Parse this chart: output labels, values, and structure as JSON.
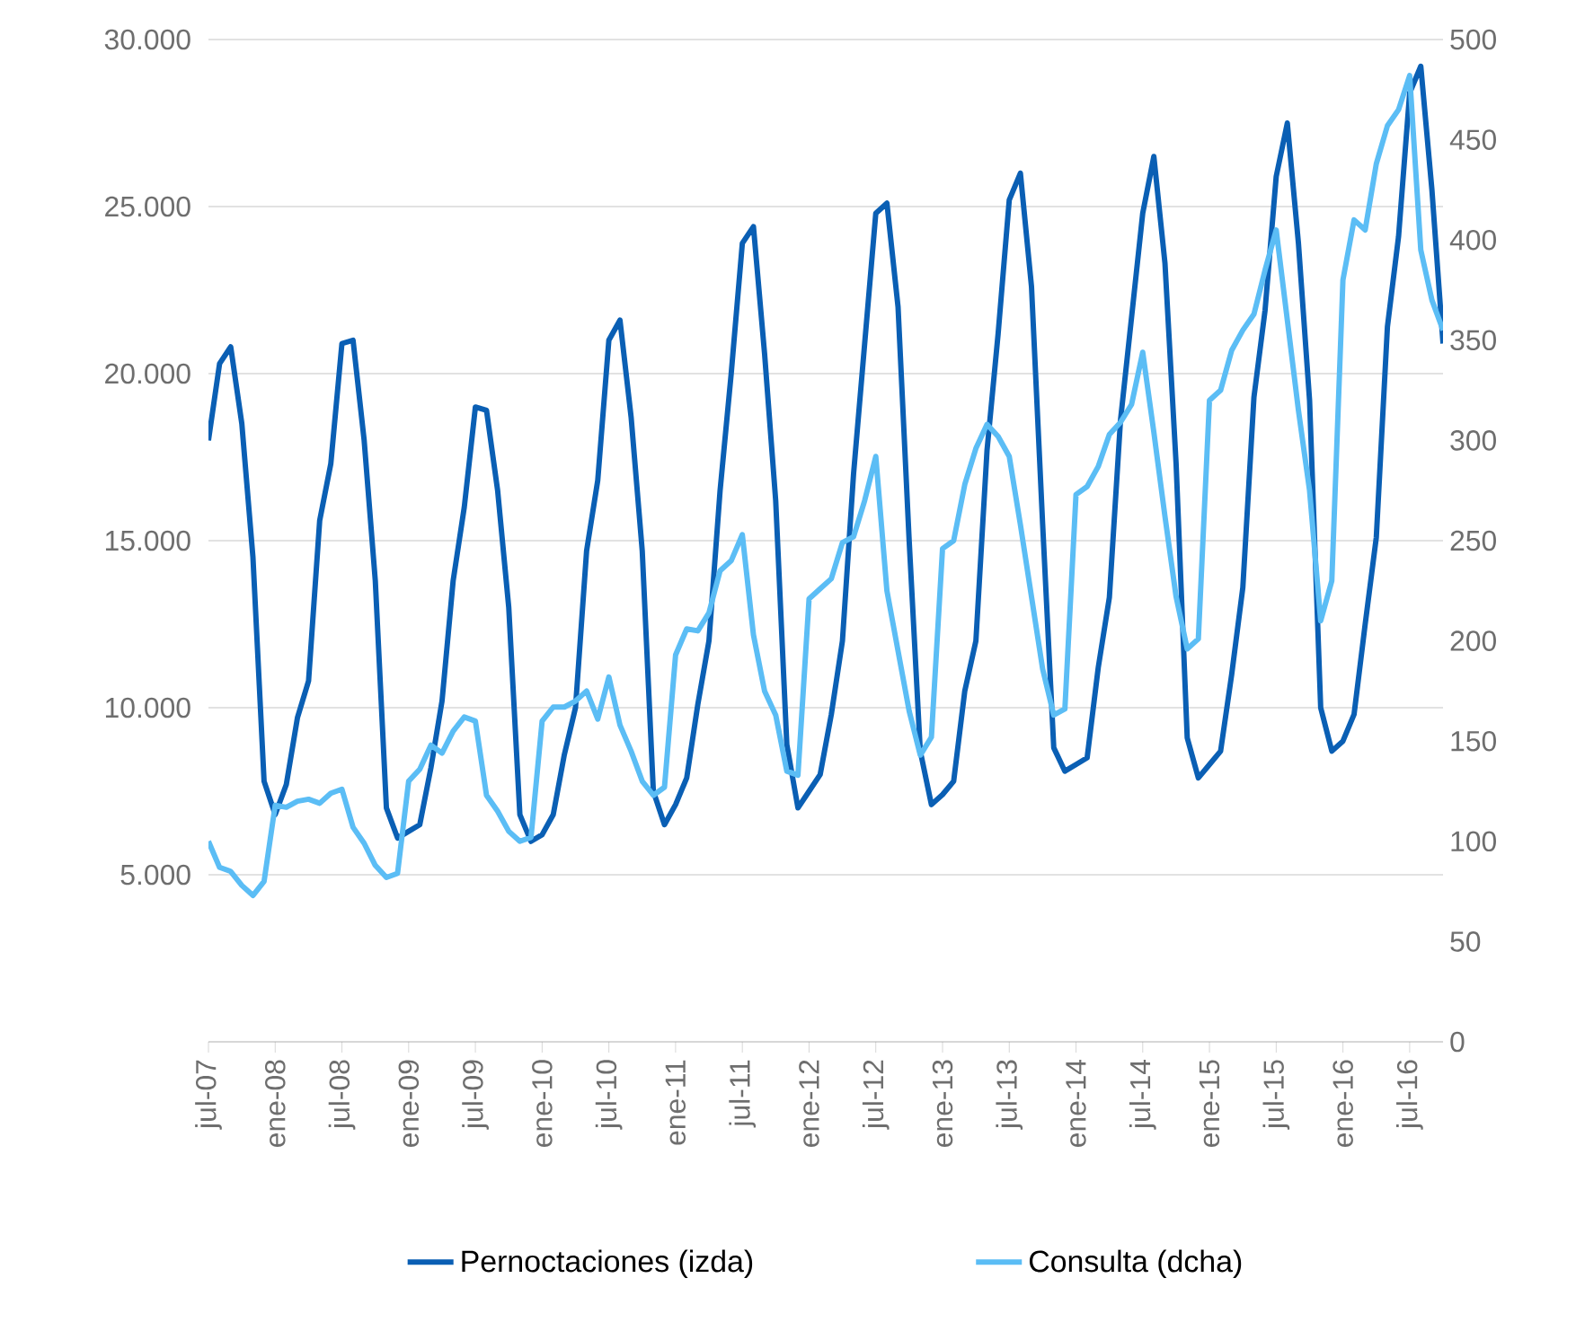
{
  "chart_data": {
    "type": "line",
    "x": [
      "2007-07",
      "2007-08",
      "2007-09",
      "2007-10",
      "2007-11",
      "2007-12",
      "2008-01",
      "2008-02",
      "2008-03",
      "2008-04",
      "2008-05",
      "2008-06",
      "2008-07",
      "2008-08",
      "2008-09",
      "2008-10",
      "2008-11",
      "2008-12",
      "2009-01",
      "2009-02",
      "2009-03",
      "2009-04",
      "2009-05",
      "2009-06",
      "2009-07",
      "2009-08",
      "2009-09",
      "2009-10",
      "2009-11",
      "2009-12",
      "2010-01",
      "2010-02",
      "2010-03",
      "2010-04",
      "2010-05",
      "2010-06",
      "2010-07",
      "2010-08",
      "2010-09",
      "2010-10",
      "2010-11",
      "2010-12",
      "2011-01",
      "2011-02",
      "2011-03",
      "2011-04",
      "2011-05",
      "2011-06",
      "2011-07",
      "2011-08",
      "2011-09",
      "2011-10",
      "2011-11",
      "2011-12",
      "2012-01",
      "2012-02",
      "2012-03",
      "2012-04",
      "2012-05",
      "2012-06",
      "2012-07",
      "2012-08",
      "2012-09",
      "2012-10",
      "2012-11",
      "2012-12",
      "2013-01",
      "2013-02",
      "2013-03",
      "2013-04",
      "2013-05",
      "2013-06",
      "2013-07",
      "2013-08",
      "2013-09",
      "2013-10",
      "2013-11",
      "2013-12",
      "2014-01",
      "2014-02",
      "2014-03",
      "2014-04",
      "2014-05",
      "2014-06",
      "2014-07",
      "2014-08",
      "2014-09",
      "2014-10",
      "2014-11",
      "2014-12",
      "2015-01",
      "2015-02",
      "2015-03",
      "2015-04",
      "2015-05",
      "2015-06",
      "2015-07",
      "2015-08",
      "2015-09",
      "2015-10",
      "2015-11",
      "2015-12",
      "2016-01",
      "2016-02",
      "2016-03",
      "2016-04",
      "2016-05",
      "2016-06",
      "2016-07",
      "2016-08",
      "2016-09",
      "2016-10"
    ],
    "series": [
      {
        "name": "Pernoctaciones (izda)",
        "color": "#0a5fb4",
        "values": [
          18000,
          20300,
          20800,
          18500,
          14500,
          7800,
          6800,
          7700,
          9700,
          10800,
          15600,
          17300,
          20900,
          21000,
          18000,
          13800,
          7000,
          6100,
          6300,
          6500,
          8200,
          10200,
          13800,
          16000,
          19000,
          18900,
          16500,
          13000,
          6800,
          6000,
          6200,
          6800,
          8600,
          10000,
          14700,
          16800,
          21000,
          21600,
          18700,
          14700,
          7500,
          6500,
          7100,
          7900,
          10100,
          12000,
          16500,
          20000,
          23900,
          24400,
          20600,
          16200,
          8900,
          7000,
          7500,
          8000,
          9800,
          12000,
          17000,
          20900,
          24800,
          25100,
          22000,
          15000,
          8700,
          7100,
          7400,
          7800,
          10500,
          12000,
          17700,
          21200,
          25200,
          26000,
          22600,
          15500,
          8800,
          8100,
          8300,
          8500,
          11200,
          13300,
          18600,
          21700,
          24800,
          26500,
          23300,
          17300,
          9100,
          7900,
          8300,
          8700,
          11000,
          13600,
          19300,
          21900,
          25900,
          27500,
          23900,
          19200,
          10000,
          8700,
          9000,
          9800,
          12500,
          15100,
          21400,
          24100,
          28400,
          29200,
          25500,
          20900
        ]
      },
      {
        "name": "Consulta (dcha)",
        "color": "#5bbdf5",
        "axis": "y2",
        "values": [
          100,
          87,
          85,
          78,
          73,
          80,
          118,
          117,
          120,
          121,
          119,
          124,
          126,
          107,
          99,
          88,
          82,
          84,
          130,
          136,
          148,
          144,
          155,
          162,
          160,
          123,
          115,
          105,
          100,
          102,
          160,
          167,
          167,
          170,
          175,
          161,
          182,
          158,
          145,
          130,
          123,
          127,
          193,
          206,
          205,
          214,
          235,
          240,
          253,
          203,
          175,
          163,
          135,
          133,
          221,
          226,
          231,
          249,
          252,
          270,
          292,
          225,
          195,
          165,
          143,
          152,
          246,
          250,
          278,
          296,
          308,
          302,
          292,
          258,
          222,
          186,
          163,
          166,
          273,
          277,
          287,
          303,
          309,
          318,
          344,
          304,
          262,
          222,
          196,
          201,
          320,
          325,
          345,
          355,
          363,
          385,
          405,
          360,
          315,
          275,
          210,
          230,
          380,
          410,
          405,
          438,
          457,
          465,
          482,
          395,
          370,
          355
        ]
      }
    ],
    "xlim": [
      "2007-07",
      "2016-10"
    ],
    "xticks": [
      {
        "value": "2007-07",
        "label": "jul-07"
      },
      {
        "value": "2008-01",
        "label": "ene-08"
      },
      {
        "value": "2008-07",
        "label": "jul-08"
      },
      {
        "value": "2009-01",
        "label": "ene-09"
      },
      {
        "value": "2009-07",
        "label": "jul-09"
      },
      {
        "value": "2010-01",
        "label": "ene-10"
      },
      {
        "value": "2010-07",
        "label": "jul-10"
      },
      {
        "value": "2011-01",
        "label": "ene-11"
      },
      {
        "value": "2011-07",
        "label": "jul-11"
      },
      {
        "value": "2012-01",
        "label": "ene-12"
      },
      {
        "value": "2012-07",
        "label": "jul-12"
      },
      {
        "value": "2013-01",
        "label": "ene-13"
      },
      {
        "value": "2013-07",
        "label": "jul-13"
      },
      {
        "value": "2014-01",
        "label": "ene-14"
      },
      {
        "value": "2014-07",
        "label": "jul-14"
      },
      {
        "value": "2015-01",
        "label": "ene-15"
      },
      {
        "value": "2015-07",
        "label": "jul-15"
      },
      {
        "value": "2016-01",
        "label": "ene-16"
      },
      {
        "value": "2016-07",
        "label": "jul-16"
      }
    ],
    "ylim": [
      0,
      30000
    ],
    "yticks": [
      {
        "value": 5000,
        "label": "5.000"
      },
      {
        "value": 10000,
        "label": "10.000"
      },
      {
        "value": 15000,
        "label": "15.000"
      },
      {
        "value": 20000,
        "label": "20.000"
      },
      {
        "value": 25000,
        "label": "25.000"
      },
      {
        "value": 30000,
        "label": "30.000"
      }
    ],
    "y2lim": [
      0,
      500
    ],
    "y2ticks": [
      0,
      50,
      100,
      150,
      200,
      250,
      300,
      350,
      400,
      450,
      500
    ],
    "grid": "y",
    "legend": "bottom",
    "marker": "none",
    "line_style": "solid"
  }
}
